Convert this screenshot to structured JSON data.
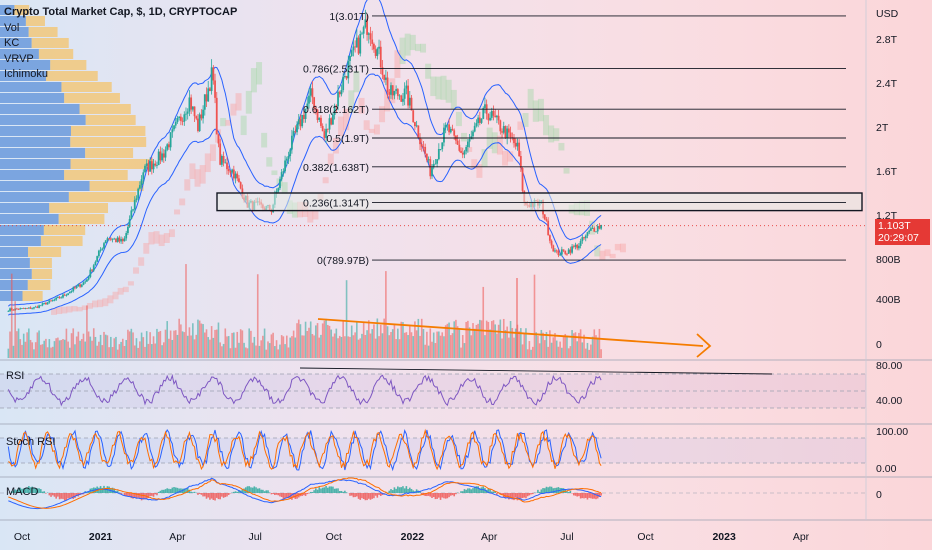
{
  "legend": {
    "title": "Crypto Total Market Cap, $, 1D, CRYPTOCAP",
    "indicators": [
      "Vol",
      "KC",
      "VRVP",
      "Ichimoku"
    ]
  },
  "panes": {
    "rsi_label": "RSI",
    "stoch_label": "Stoch RSI",
    "macd_label": "MACD"
  },
  "price_tag": {
    "value": "1.103T",
    "countdown": "20:29:07",
    "color": "#e53935"
  },
  "colors": {
    "up": "#26a69a",
    "down": "#ef5350",
    "channel": "#2962ff",
    "arrow": "#f57c00",
    "rsi": "#7e57c2",
    "stoch_k": "#2962ff",
    "stoch_d": "#ff6d00"
  },
  "chart_data": {
    "type": "candlestick",
    "title": "Crypto Total Market Cap, $, 1D, CRYPTOCAP",
    "currency": "USD",
    "y_unit_label": "USD",
    "y_ticks": [
      "2.8T",
      "2.4T",
      "2T",
      "1.6T",
      "1.2T",
      "800B",
      "400B",
      "0"
    ],
    "y_tick_values": [
      2800,
      2400,
      2000,
      1600,
      1200,
      800,
      400,
      0
    ],
    "x_ticks": [
      "Oct",
      "2021",
      "Apr",
      "Jul",
      "Oct",
      "2022",
      "Apr",
      "Jul",
      "Oct",
      "2023",
      "Apr"
    ],
    "x_tick_bold": [
      false,
      true,
      false,
      false,
      false,
      true,
      false,
      false,
      false,
      true,
      false
    ],
    "x_tick_dates": [
      "2020-10-01",
      "2021-01-01",
      "2021-04-01",
      "2021-07-01",
      "2021-10-01",
      "2022-01-01",
      "2022-04-01",
      "2022-07-01",
      "2022-10-01",
      "2023-01-01",
      "2023-04-01"
    ],
    "fib_levels": [
      {
        "label": "1(3.01T)",
        "value": 3010
      },
      {
        "label": "0.786(2.531T)",
        "value": 2531
      },
      {
        "label": "0.618(2.162T)",
        "value": 2162
      },
      {
        "label": "0.5(1.9T)",
        "value": 1900
      },
      {
        "label": "0.382(1.638T)",
        "value": 1638
      },
      {
        "label": "0.236(1.314T)",
        "value": 1314
      },
      {
        "label": "0(789.97B)",
        "value": 790
      }
    ],
    "highlight_zone": {
      "from": 1240,
      "to": 1400
    },
    "last_price": 1103,
    "price_path": [
      {
        "date": "2020-09-15",
        "value": 340
      },
      {
        "date": "2020-10-15",
        "value": 355
      },
      {
        "date": "2020-11-15",
        "value": 450
      },
      {
        "date": "2020-12-15",
        "value": 600
      },
      {
        "date": "2021-01-08",
        "value": 1000
      },
      {
        "date": "2021-01-28",
        "value": 950
      },
      {
        "date": "2021-02-20",
        "value": 1600
      },
      {
        "date": "2021-03-15",
        "value": 1750
      },
      {
        "date": "2021-04-15",
        "value": 2250
      },
      {
        "date": "2021-04-25",
        "value": 2000
      },
      {
        "date": "2021-05-12",
        "value": 2500
      },
      {
        "date": "2021-05-20",
        "value": 1700
      },
      {
        "date": "2021-06-05",
        "value": 1600
      },
      {
        "date": "2021-06-22",
        "value": 1300
      },
      {
        "date": "2021-07-20",
        "value": 1250
      },
      {
        "date": "2021-08-10",
        "value": 1800
      },
      {
        "date": "2021-09-05",
        "value": 2300
      },
      {
        "date": "2021-09-20",
        "value": 1900
      },
      {
        "date": "2021-10-15",
        "value": 2500
      },
      {
        "date": "2021-11-10",
        "value": 2950
      },
      {
        "date": "2021-11-25",
        "value": 2600
      },
      {
        "date": "2021-12-05",
        "value": 2300
      },
      {
        "date": "2021-12-25",
        "value": 2300
      },
      {
        "date": "2022-01-10",
        "value": 1900
      },
      {
        "date": "2022-01-22",
        "value": 1600
      },
      {
        "date": "2022-02-10",
        "value": 2000
      },
      {
        "date": "2022-03-01",
        "value": 1750
      },
      {
        "date": "2022-03-28",
        "value": 2150
      },
      {
        "date": "2022-04-20",
        "value": 1950
      },
      {
        "date": "2022-05-05",
        "value": 1800
      },
      {
        "date": "2022-05-12",
        "value": 1300
      },
      {
        "date": "2022-06-01",
        "value": 1300
      },
      {
        "date": "2022-06-13",
        "value": 930
      },
      {
        "date": "2022-06-18",
        "value": 850
      },
      {
        "date": "2022-07-01",
        "value": 870
      },
      {
        "date": "2022-07-15",
        "value": 930
      },
      {
        "date": "2022-07-30",
        "value": 1070
      },
      {
        "date": "2022-08-10",
        "value": 1103
      }
    ]
  }
}
